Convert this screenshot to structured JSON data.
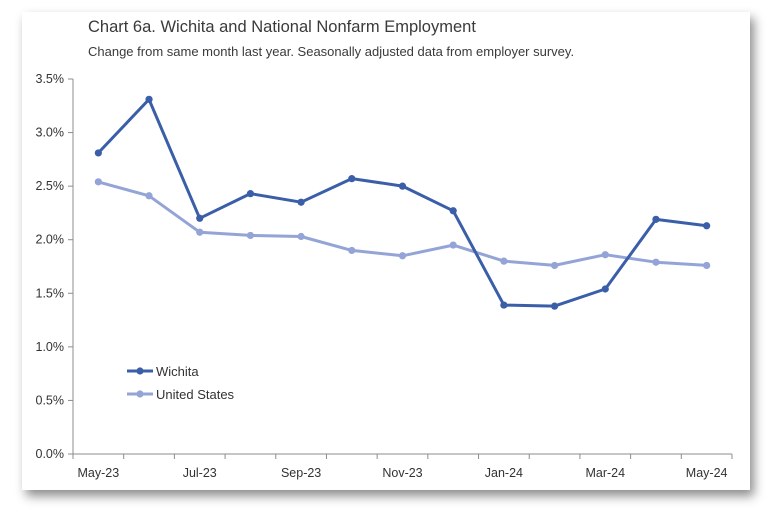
{
  "chart_data": {
    "type": "line",
    "title": "Chart 6a. Wichita and National Nonfarm Employment",
    "subtitle": "Change from same month last year. Seasonally adjusted data from employer survey.",
    "x": [
      "May-23",
      "Jun-23",
      "Jul-23",
      "Aug-23",
      "Sep-23",
      "Oct-23",
      "Nov-23",
      "Dec-23",
      "Jan-24",
      "Feb-24",
      "Mar-24",
      "Apr-24",
      "May-24"
    ],
    "x_tick_labels": [
      "May-23",
      "Jul-23",
      "Sep-23",
      "Nov-23",
      "Jan-24",
      "Mar-24",
      "May-24"
    ],
    "y_ticks": [
      0,
      0.5,
      1.0,
      1.5,
      2.0,
      2.5,
      3.0,
      3.5
    ],
    "y_tick_labels": [
      "0.0%",
      "0.5%",
      "1.0%",
      "1.5%",
      "2.0%",
      "2.5%",
      "3.0%",
      "3.5%"
    ],
    "ylim": [
      0,
      3.5
    ],
    "grid": false,
    "legend_position": "bottom-left",
    "series": [
      {
        "name": "Wichita",
        "color": "#3a5ea8",
        "values": [
          2.81,
          3.31,
          2.2,
          2.43,
          2.35,
          2.57,
          2.5,
          2.27,
          1.39,
          1.38,
          1.54,
          2.19,
          2.13
        ]
      },
      {
        "name": "United States",
        "color": "#94a4d6",
        "values": [
          2.54,
          2.41,
          2.07,
          2.04,
          2.03,
          1.9,
          1.85,
          1.95,
          1.8,
          1.76,
          1.86,
          1.79,
          1.76
        ]
      }
    ]
  }
}
